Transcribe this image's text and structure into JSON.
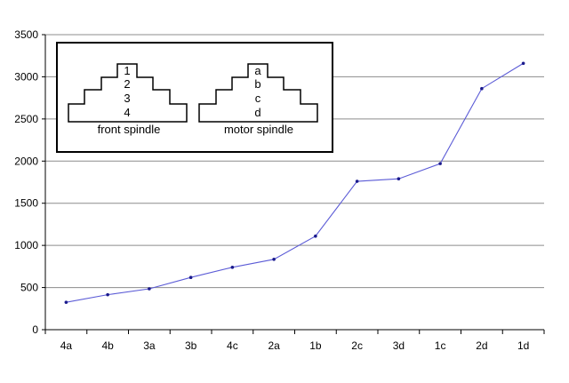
{
  "chart_data": {
    "type": "line",
    "title": "",
    "xlabel": "",
    "ylabel": "",
    "categories": [
      "4a",
      "4b",
      "3a",
      "3b",
      "4c",
      "2a",
      "1b",
      "2c",
      "3d",
      "1c",
      "2d",
      "1d"
    ],
    "series": [
      {
        "values": [
          325,
          415,
          485,
          620,
          740,
          835,
          1110,
          1760,
          1790,
          1970,
          2860,
          3160
        ],
        "color": "#5b5bd6"
      }
    ],
    "ylim": [
      0,
      3500
    ],
    "y_ticks": [
      0,
      500,
      1000,
      1500,
      2000,
      2500,
      3000,
      3500
    ],
    "y_tick_labels": [
      "0",
      "500",
      "1000",
      "1500",
      "2000",
      "2500",
      "3000",
      "3500"
    ],
    "grid": true,
    "legend": "none",
    "marker": "small-dot"
  },
  "inset": {
    "front_spindle": {
      "caption": "front spindle",
      "steps": [
        "1",
        "2",
        "3",
        "4"
      ]
    },
    "motor_spindle": {
      "caption": "motor spindle",
      "steps": [
        "a",
        "b",
        "c",
        "d"
      ]
    }
  },
  "colors": {
    "line": "#5b5bd6",
    "marker": "#1a1a8c",
    "grid": "#8c8c8c",
    "axis": "#000000"
  }
}
